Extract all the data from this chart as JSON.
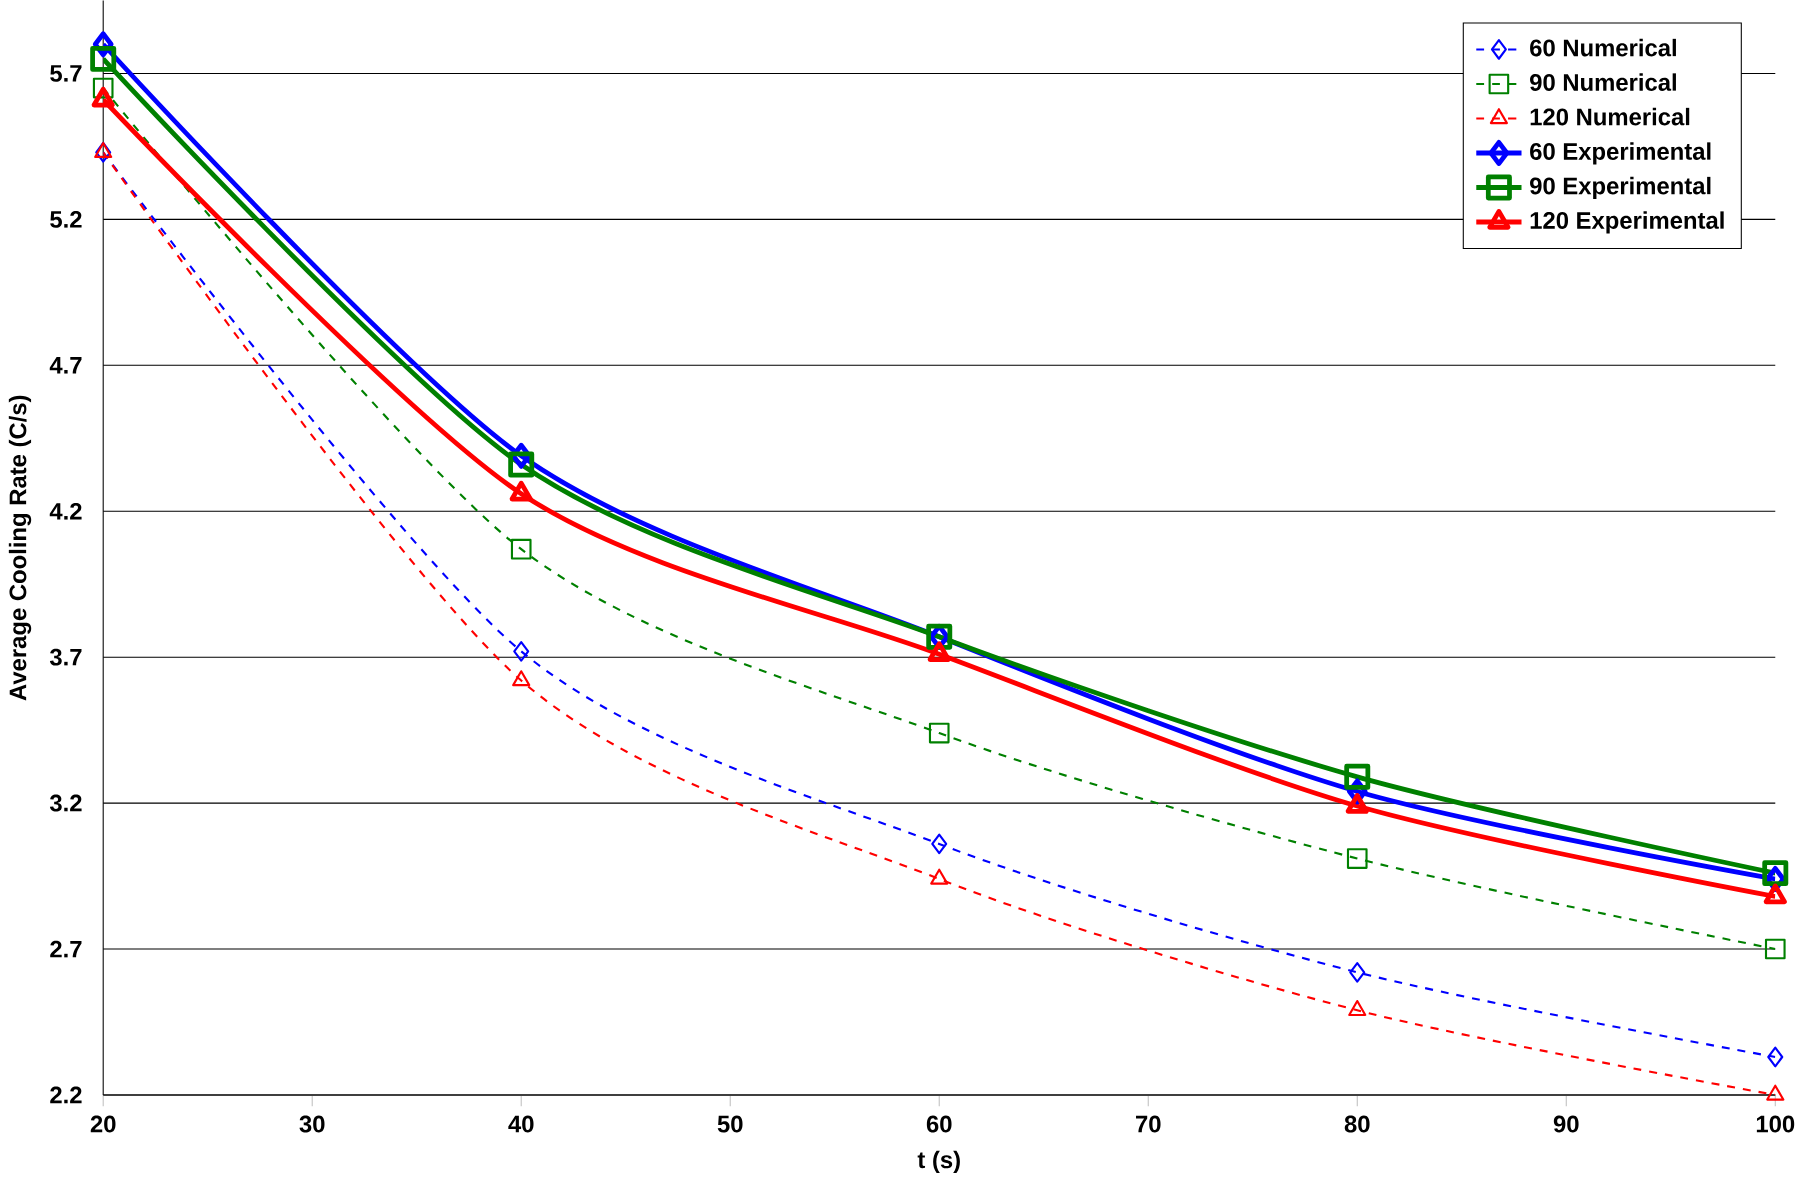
{
  "chart_data": {
    "type": "line",
    "xlabel": "t (s)",
    "ylabel": "Average Cooling Rate (C/s)",
    "x": [
      20,
      40,
      60,
      80,
      100
    ],
    "series": [
      {
        "name": "60 Numerical",
        "color": "#0000ff",
        "marker": "diamond",
        "line_style": "dashed",
        "values": [
          5.43,
          3.72,
          3.06,
          2.62,
          2.33
        ]
      },
      {
        "name": "90 Numerical",
        "color": "#008000",
        "marker": "square",
        "line_style": "dashed",
        "values": [
          5.65,
          4.07,
          3.44,
          3.01,
          2.7
        ]
      },
      {
        "name": "120 Numerical",
        "color": "#ff0000",
        "marker": "triangle",
        "line_style": "dashed",
        "values": [
          5.43,
          3.62,
          2.94,
          2.49,
          2.2
        ]
      },
      {
        "name": "60 Experimental",
        "color": "#0000ff",
        "marker": "diamond",
        "line_style": "solid",
        "values": [
          5.8,
          4.39,
          3.77,
          3.24,
          2.94
        ]
      },
      {
        "name": "90 Experimental",
        "color": "#008000",
        "marker": "square",
        "line_style": "solid",
        "values": [
          5.75,
          4.36,
          3.77,
          3.29,
          2.96
        ]
      },
      {
        "name": "120 Experimental",
        "color": "#ff0000",
        "marker": "triangle",
        "line_style": "solid",
        "values": [
          5.61,
          4.26,
          3.71,
          3.19,
          2.88
        ]
      }
    ],
    "xlim": [
      20,
      100
    ],
    "xticks": [
      20,
      30,
      40,
      50,
      60,
      70,
      80,
      90,
      100
    ],
    "ylim": [
      2.2,
      5.95
    ],
    "yticks": [
      2.2,
      2.7,
      3.2,
      3.7,
      4.2,
      4.7,
      5.2,
      5.7
    ],
    "grid": "y",
    "legend": "top right"
  }
}
